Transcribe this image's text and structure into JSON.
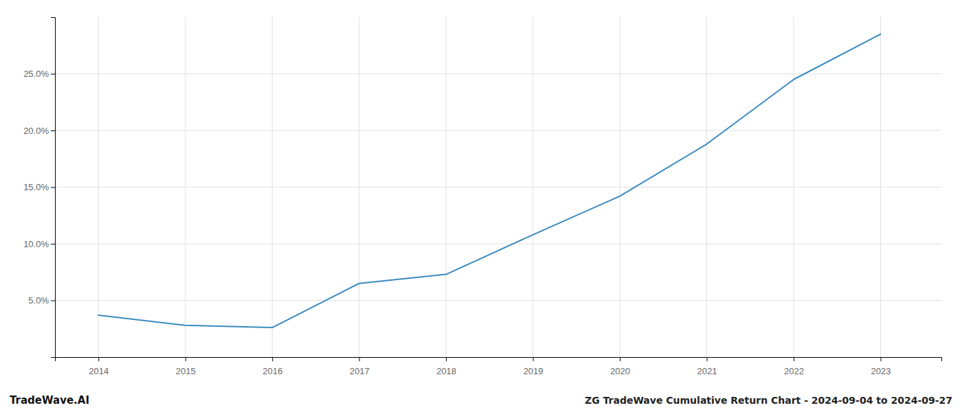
{
  "chart_data": {
    "type": "line",
    "title": "ZG TradeWave Cumulative Return Chart - 2024-09-04 to 2024-09-27",
    "annotations": [
      "TradeWave.AI"
    ],
    "x": [
      2014,
      2015,
      2016,
      2017,
      2018,
      2019,
      2020,
      2021,
      2022,
      2023
    ],
    "values": [
      3.7,
      2.8,
      2.6,
      6.5,
      7.3,
      10.8,
      14.2,
      18.8,
      24.5,
      28.5
    ],
    "color": "#3a8abf",
    "xlim": [
      2013.5,
      2023.7
    ],
    "ylim": [
      0,
      30
    ],
    "xticks": [
      2014,
      2015,
      2016,
      2017,
      2018,
      2019,
      2020,
      2021,
      2022,
      2023
    ],
    "yticks": [
      {
        "value": 5.0,
        "label": "5.0%"
      },
      {
        "value": 10.0,
        "label": "10.0%"
      },
      {
        "value": 15.0,
        "label": "15.0%"
      },
      {
        "value": 20.0,
        "label": "20.0%"
      },
      {
        "value": 25.0,
        "label": "25.0%"
      }
    ],
    "grid": true
  }
}
